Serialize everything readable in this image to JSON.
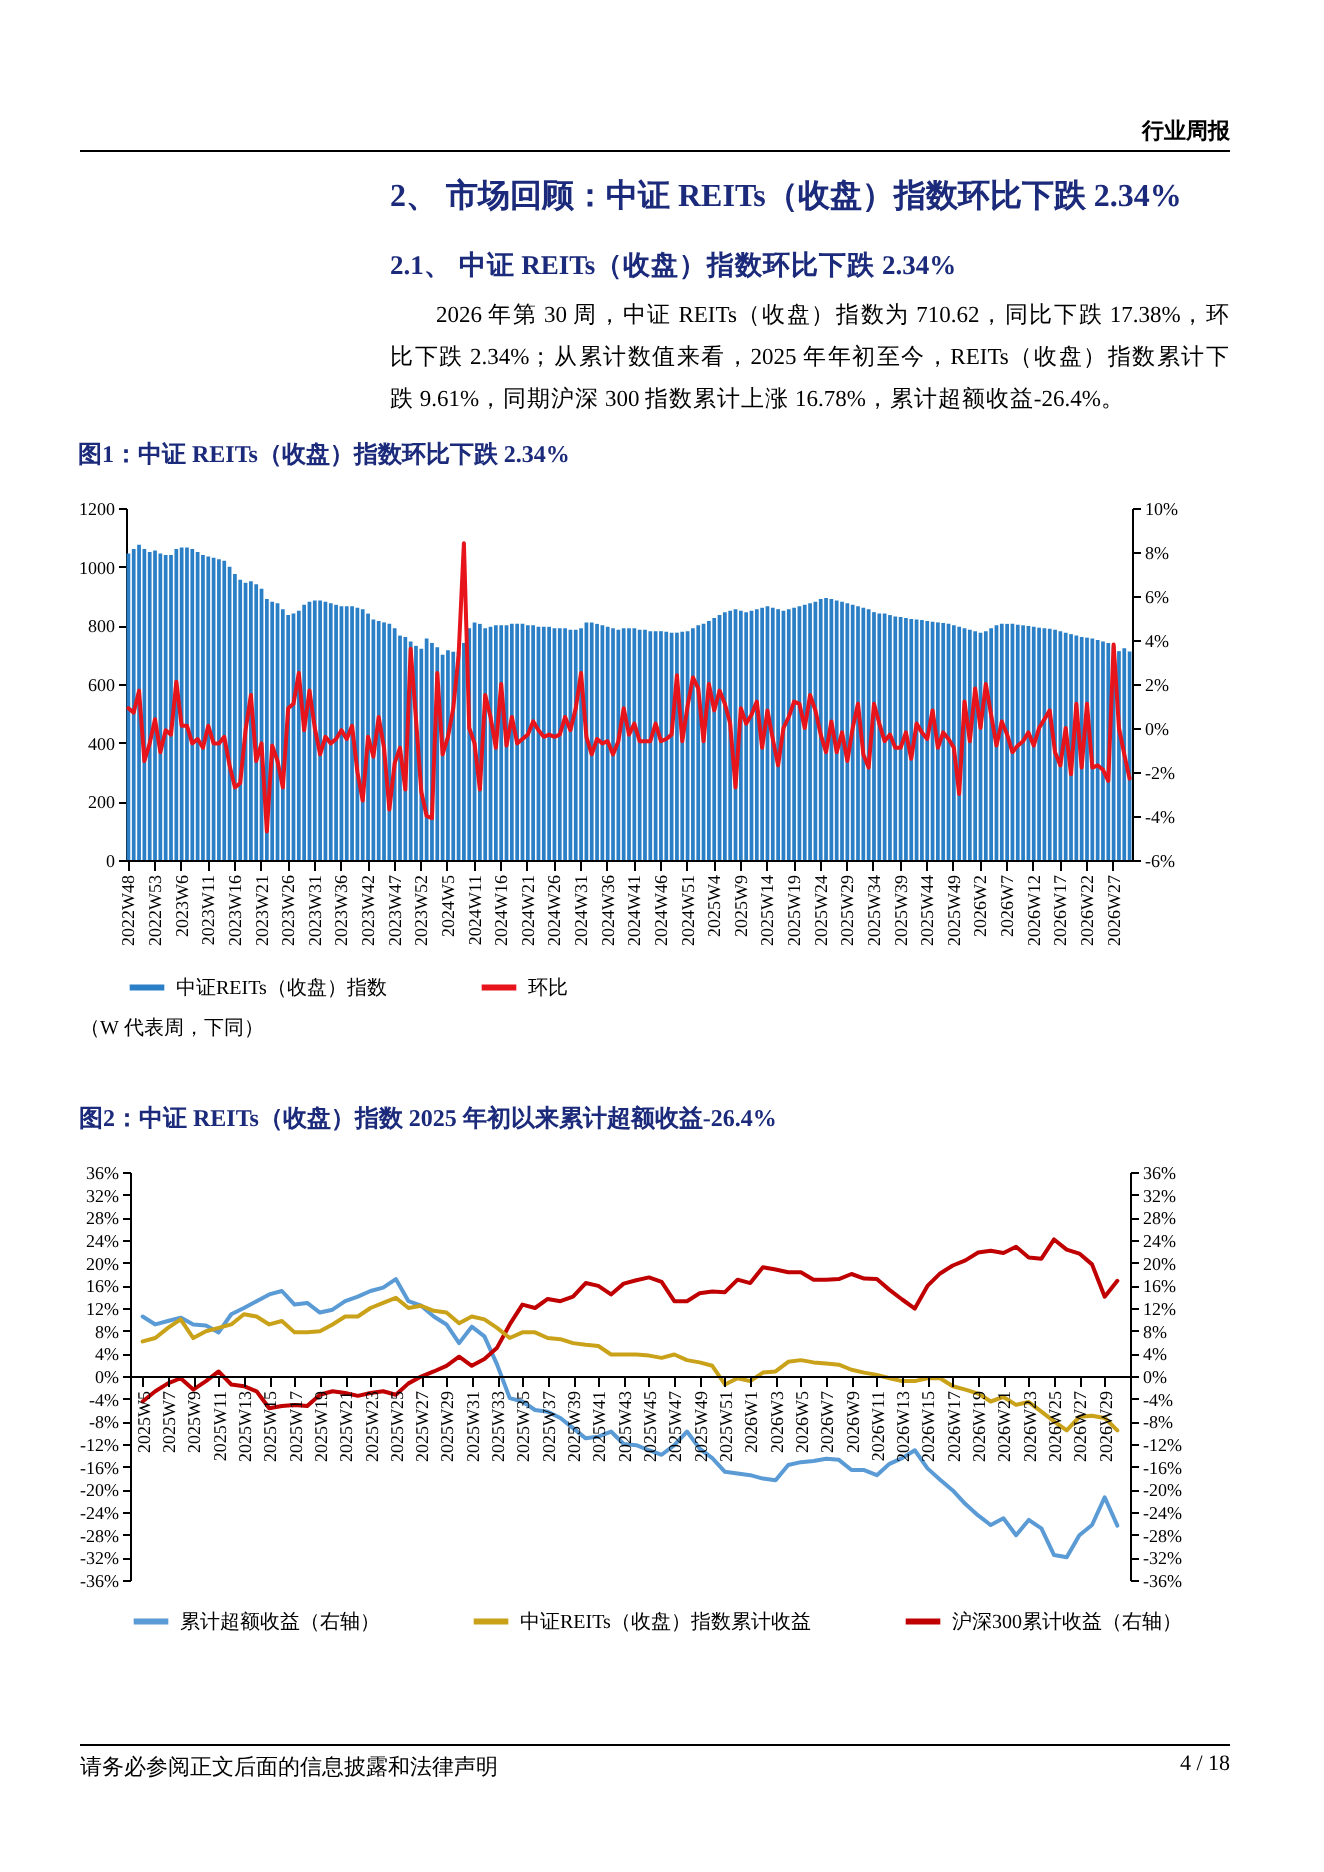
{
  "chart_data": [
    {
      "type": "bar",
      "title": "图1：中证 REITs（收盘）指数环比下跌 2.34%",
      "annotations": [
        "行业周报",
        "2、 市场回顾：中证 REITs（收盘）指数环比下跌 2.34%",
        "2.1、 中证 REITs（收盘）指数环比下跌 2.34%",
        "2026 年第 30 周，中证 REITs（收盘）指数为 710.62，同比下跌 17.38%，环比下跌 2.34%；从累计数值来看，2025 年年初至今，REITs（收盘）指数累计下跌 9.61%，同期沪深 300 指数累计上涨 16.78%，累计超额收益-26.4%。",
        "（W 代表周，下同）"
      ],
      "categories": [
        "2022W48",
        null,
        null,
        null,
        null,
        "2022W53",
        null,
        null,
        null,
        null,
        "2023W6",
        null,
        null,
        null,
        null,
        "2023W11",
        null,
        null,
        null,
        null,
        "2023W16",
        null,
        null,
        null,
        null,
        "2023W21",
        null,
        null,
        null,
        null,
        "2023W26",
        null,
        null,
        null,
        null,
        "2023W31",
        null,
        null,
        null,
        null,
        "2023W36",
        null,
        null,
        null,
        null,
        "2023W42",
        null,
        null,
        null,
        null,
        "2023W47",
        null,
        null,
        null,
        null,
        "2023W52",
        null,
        null,
        null,
        null,
        "2024W5",
        null,
        null,
        null,
        null,
        "2024W11",
        null,
        null,
        null,
        null,
        "2024W16",
        null,
        null,
        null,
        null,
        "2024W21",
        null,
        null,
        null,
        null,
        "2024W26",
        null,
        null,
        null,
        null,
        "2024W31",
        null,
        null,
        null,
        null,
        "2024W36",
        null,
        null,
        null,
        null,
        "2024W41",
        null,
        null,
        null,
        null,
        "2024W46",
        null,
        null,
        null,
        null,
        "2024W51",
        null,
        null,
        null,
        null,
        "2025W4",
        null,
        null,
        null,
        null,
        "2025W9",
        null,
        null,
        null,
        null,
        "2025W14",
        null,
        null,
        null,
        null,
        "2025W19",
        null,
        null,
        null,
        null,
        "2025W24",
        null,
        null,
        null,
        null,
        "2025W29",
        null,
        null,
        null,
        null,
        "2025W34",
        null,
        null,
        null,
        null,
        "2025W39",
        null,
        null,
        null,
        null,
        "2025W44",
        null,
        null,
        null,
        null,
        "2025W49",
        null,
        null,
        null,
        null,
        "2026W2",
        null,
        null,
        null,
        null,
        "2026W7",
        null,
        null,
        null,
        null,
        "2026W12",
        null,
        null,
        null,
        null,
        "2026W17",
        null,
        null,
        null,
        null,
        "2026W22",
        null,
        null,
        null,
        null,
        "2026W27",
        null,
        null,
        null
      ],
      "series": [
        {
          "name": "中证REITs（收盘）指数",
          "type": "bar",
          "color": "#2a7fc6",
          "values": [
            1045,
            1060,
            1075,
            1060,
            1050,
            1055,
            1045,
            1040,
            1040,
            1060,
            1065,
            1065,
            1060,
            1050,
            1040,
            1035,
            1030,
            1025,
            1020,
            1000,
            975,
            955,
            945,
            950,
            940,
            925,
            890,
            880,
            875,
            855,
            835,
            840,
            850,
            870,
            880,
            885,
            885,
            880,
            875,
            870,
            865,
            865,
            865,
            860,
            855,
            840,
            820,
            815,
            810,
            805,
            790,
            765,
            760,
            745,
            730,
            720,
            755,
            740,
            725,
            700,
            715,
            710,
            710,
            740,
            790,
            810,
            805,
            790,
            795,
            800,
            800,
            800,
            805,
            805,
            805,
            800,
            800,
            795,
            795,
            795,
            790,
            790,
            790,
            785,
            785,
            790,
            810,
            810,
            805,
            800,
            795,
            790,
            785,
            790,
            790,
            790,
            785,
            785,
            780,
            780,
            780,
            778,
            775,
            775,
            778,
            780,
            790,
            800,
            805,
            815,
            825,
            835,
            845,
            850,
            855,
            850,
            845,
            850,
            855,
            860,
            865,
            860,
            855,
            850,
            855,
            860,
            865,
            870,
            875,
            880,
            890,
            893,
            890,
            885,
            880,
            875,
            870,
            865,
            860,
            855,
            845,
            840,
            840,
            835,
            830,
            828,
            825,
            822,
            820,
            818,
            815,
            812,
            810,
            808,
            805,
            800,
            795,
            790,
            785,
            780,
            775,
            780,
            790,
            800,
            805,
            805,
            805,
            802,
            800,
            798,
            795,
            792,
            790,
            788,
            785,
            780,
            775,
            770,
            765,
            760,
            758,
            755,
            750,
            745,
            740,
            729,
            712,
            722,
            711
          ]
        },
        {
          "name": "环比",
          "type": "line",
          "axis": "y2",
          "color": "#e8141c",
          "values": [
            0.9,
            0.7,
            1.7,
            -1.5,
            -0.7,
            0.4,
            -1.1,
            -0.1,
            -0.3,
            2.1,
            0.1,
            0.1,
            -0.7,
            -0.5,
            -0.9,
            0.1,
            -0.7,
            -0.7,
            -0.4,
            -1.7,
            -2.7,
            -2.5,
            -0.1,
            1.5,
            -1.5,
            -0.7,
            -4.7,
            -0.8,
            -1.5,
            -2.7,
            0.9,
            1.1,
            2.5,
            -0.1,
            1.7,
            0,
            -1.2,
            -0.4,
            -0.7,
            -0.5,
            -0.1,
            -0.5,
            0.1,
            -2,
            -3.3,
            -0.4,
            -1.3,
            0.5,
            -0.9,
            -3.7,
            -1.6,
            -0.9,
            -2.8,
            3.6,
            0.4,
            -2.9,
            -4,
            -4.1,
            2.5,
            -1.2,
            -0.4,
            0.9,
            3.3,
            8.4,
            0,
            -0.7,
            -2.8,
            1.5,
            0.5,
            -0.9,
            2,
            -0.8,
            0.5,
            -0.7,
            -0.5,
            -0.3,
            0.3,
            -0.1,
            -0.4,
            -0.3,
            -0.4,
            -0.3,
            0.5,
            -0.1,
            0.9,
            2.5,
            -0.4,
            -1.2,
            -0.5,
            -0.7,
            -0.6,
            -1.2,
            -0.6,
            0.9,
            -0.3,
            0.2,
            -0.6,
            -0.6,
            -0.6,
            0.2,
            -0.6,
            -0.5,
            -0.3,
            2.4,
            -0.6,
            1,
            2.3,
            1.8,
            -0.6,
            2,
            0.8,
            1.7,
            1.1,
            0.2,
            -2.7,
            0.9,
            0.2,
            0.6,
            1.2,
            -0.9,
            0.8,
            -0.5,
            -1.7,
            0,
            0.5,
            1.2,
            1.1,
            0,
            1.5,
            0.8,
            -0.3,
            -1.1,
            0.3,
            -1.1,
            -0.2,
            -1.5,
            0,
            1.1,
            -1.2,
            -1.8,
            1.1,
            0.2,
            -0.6,
            -0.3,
            -0.9,
            -0.9,
            -0.2,
            -1.4,
            0.2,
            -0.2,
            -0.5,
            0.8,
            -0.9,
            -0.2,
            -0.5,
            -0.9,
            -3,
            1.2,
            -0.6,
            1.8,
            0,
            2,
            0.6,
            -0.8,
            0.3,
            -0.3,
            -1.1,
            -0.8,
            -0.6,
            -0.2,
            -0.8,
            0,
            0.4,
            0.8,
            -1.1,
            -1.7,
            0,
            -2.1,
            1.1,
            -1.8,
            1.1,
            -1.8,
            -1.7,
            -1.9,
            -2.4,
            3.8,
            0,
            -1.2,
            -2.3
          ]
        }
      ],
      "ylim": [
        0,
        1200
      ],
      "yticks": [
        0,
        200,
        400,
        600,
        800,
        1000,
        1200
      ],
      "y2lim": [
        -6,
        10
      ],
      "y2ticks": [
        {
          "value": -6,
          "label": "-6%"
        },
        {
          "value": -4,
          "label": "-4%"
        },
        {
          "value": -2,
          "label": "-2%"
        },
        {
          "value": 0,
          "label": "0%"
        },
        {
          "value": 2,
          "label": "2%"
        },
        {
          "value": 4,
          "label": "4%"
        },
        {
          "value": 6,
          "label": "6%"
        },
        {
          "value": 8,
          "label": "8%"
        },
        {
          "value": 10,
          "label": "10%"
        }
      ],
      "legend": "bottom"
    },
    {
      "type": "line",
      "title": "图2：中证 REITs（收盘）指数 2025 年初以来累计超额收益-26.4%",
      "annotations": [
        "请务必参阅正文后面的信息披露和法律声明",
        "4 / 18"
      ],
      "categories": [
        "2025W5",
        null,
        "2025W7",
        null,
        "2025W9",
        null,
        "2025W11",
        null,
        "2025W13",
        null,
        "2025W15",
        null,
        "2025W17",
        null,
        "2025W19",
        null,
        "2025W21",
        null,
        "2025W23",
        null,
        "2025W25",
        null,
        "2025W27",
        null,
        "2025W29",
        null,
        "2025W31",
        null,
        "2025W33",
        null,
        "2025W35",
        null,
        "2025W37",
        null,
        "2025W39",
        null,
        "2025W41",
        null,
        "2025W43",
        null,
        "2025W45",
        null,
        "2025W47",
        null,
        "2025W49",
        null,
        "2025W51",
        null,
        "2026W1",
        null,
        "2026W3",
        null,
        "2026W5",
        null,
        "2026W7",
        null,
        "2026W9",
        null,
        "2026W11",
        null,
        "2026W13",
        null,
        "2026W15",
        null,
        "2026W17",
        null,
        "2026W19",
        null,
        "2026W21",
        null,
        "2026W23",
        null,
        "2026W25",
        null,
        "2026W27",
        null,
        "2026W29",
        null
      ],
      "series": [
        {
          "name": "累计超额收益（右轴）",
          "axis": "y2",
          "color": "#5b9bd5",
          "values": [
            10.5,
            9.1,
            9.7,
            10.3,
            9.1,
            8.9,
            7.7,
            10.9,
            12,
            13.2,
            14.4,
            15,
            12.6,
            12.9,
            11.2,
            11.7,
            13.2,
            14,
            15,
            15.6,
            17.1,
            13.2,
            12.4,
            10.5,
            9.1,
            5.8,
            8.7,
            7,
            2,
            -3.9,
            -4.5,
            -6,
            -6.3,
            -7.4,
            -9.2,
            -11,
            -10.7,
            -9.8,
            -12,
            -12.2,
            -13.1,
            -13.9,
            -12.2,
            -9.8,
            -12.8,
            -14.5,
            -16.9,
            -17.2,
            -17.5,
            -18.1,
            -18.4,
            -15.7,
            -15.2,
            -15,
            -14.6,
            -14.8,
            -16.6,
            -16.6,
            -17.5,
            -15.5,
            -14.5,
            -13.1,
            -16.3,
            -18.3,
            -20.2,
            -22.6,
            -24.6,
            -26.3,
            -25.1,
            -28.1,
            -25.4,
            -26.9,
            -31.6,
            -32,
            -28.1,
            -26.3,
            -21.4,
            -26.4
          ]
        },
        {
          "name": "中证REITs（收盘）指数累计收益",
          "color": "#c9a21a",
          "values": [
            6.1,
            6.7,
            8.5,
            10,
            6.7,
            7.9,
            8.5,
            9.1,
            10.9,
            10.5,
            9.1,
            9.7,
            7.7,
            7.7,
            7.9,
            9.1,
            10.5,
            10.5,
            12,
            12.9,
            13.8,
            12,
            12.4,
            11.5,
            11.2,
            9.3,
            10.5,
            10,
            8.5,
            6.7,
            7.7,
            7.7,
            6.7,
            6.5,
            5.8,
            5.5,
            5.3,
            3.8,
            3.8,
            3.8,
            3.6,
            3.2,
            3.8,
            2.8,
            2.4,
            1.8,
            -1.5,
            -0.4,
            -0.9,
            0.6,
            0.8,
            2.5,
            2.8,
            2.4,
            2.2,
            2,
            1.1,
            0.6,
            0.2,
            -0.4,
            -0.9,
            -0.9,
            -0.4,
            -0.4,
            -1.8,
            -2.4,
            -3.1,
            -4.5,
            -3.7,
            -5.1,
            -4.6,
            -6.3,
            -8,
            -9.6,
            -7.2,
            -7,
            -7.4,
            -9.6
          ]
        },
        {
          "name": "沪深300累计收益（右轴）",
          "axis": "y2",
          "color": "#c00000",
          "values": [
            -4.5,
            -2.7,
            -1.3,
            -0.4,
            -2.4,
            -0.9,
            0.8,
            -1.5,
            -1.8,
            -2.7,
            -5.7,
            -5.3,
            -5.1,
            -5.3,
            -3.3,
            -2.7,
            -3,
            -3.5,
            -3,
            -2.7,
            -3.3,
            -1.3,
            -0.1,
            0.8,
            1.8,
            3.4,
            1.8,
            3,
            5,
            9.1,
            12.6,
            12,
            13.6,
            13.2,
            14,
            16.4,
            15.9,
            14.4,
            16.3,
            16.9,
            17.4,
            16.6,
            13.2,
            13.2,
            14.6,
            14.9,
            14.8,
            17,
            16.4,
            19.2,
            18.8,
            18.3,
            18.3,
            17,
            17,
            17.1,
            18,
            17.2,
            17.1,
            15.2,
            13.5,
            11.9,
            15.9,
            18.1,
            19.5,
            20.4,
            21.8,
            22.1,
            21.7,
            22.8,
            20.9,
            20.7,
            24.1,
            22.3,
            21.6,
            19.7,
            14,
            16.8
          ]
        }
      ],
      "ylim": [
        -36,
        36
      ],
      "yticks": [
        {
          "value": -36,
          "label": "-36%"
        },
        {
          "value": -32,
          "label": "-32%"
        },
        {
          "value": -28,
          "label": "-28%"
        },
        {
          "value": -24,
          "label": "-24%"
        },
        {
          "value": -20,
          "label": "-20%"
        },
        {
          "value": -16,
          "label": "-16%"
        },
        {
          "value": -12,
          "label": "-12%"
        },
        {
          "value": -8,
          "label": "-8%"
        },
        {
          "value": -4,
          "label": "-4%"
        },
        {
          "value": 0,
          "label": "0%"
        },
        {
          "value": 4,
          "label": "4%"
        },
        {
          "value": 8,
          "label": "8%"
        },
        {
          "value": 12,
          "label": "12%"
        },
        {
          "value": 16,
          "label": "16%"
        },
        {
          "value": 20,
          "label": "20%"
        },
        {
          "value": 24,
          "label": "24%"
        },
        {
          "value": 28,
          "label": "28%"
        },
        {
          "value": 32,
          "label": "32%"
        },
        {
          "value": 36,
          "label": "36%"
        }
      ],
      "y2lim": [
        -36,
        36
      ],
      "y2ticks": [
        {
          "value": -36,
          "label": "-36%"
        },
        {
          "value": -32,
          "label": "-32%"
        },
        {
          "value": -28,
          "label": "-28%"
        },
        {
          "value": -24,
          "label": "-24%"
        },
        {
          "value": -20,
          "label": "-20%"
        },
        {
          "value": -16,
          "label": "-16%"
        },
        {
          "value": -12,
          "label": "-12%"
        },
        {
          "value": -8,
          "label": "-8%"
        },
        {
          "value": -4,
          "label": "-4%"
        },
        {
          "value": 0,
          "label": "0%"
        },
        {
          "value": 4,
          "label": "4%"
        },
        {
          "value": 8,
          "label": "8%"
        },
        {
          "value": 12,
          "label": "12%"
        },
        {
          "value": 16,
          "label": "16%"
        },
        {
          "value": 20,
          "label": "20%"
        },
        {
          "value": 24,
          "label": "24%"
        },
        {
          "value": 28,
          "label": "28%"
        },
        {
          "value": 32,
          "label": "32%"
        },
        {
          "value": 36,
          "label": "36%"
        }
      ],
      "legend": "bottom"
    }
  ]
}
